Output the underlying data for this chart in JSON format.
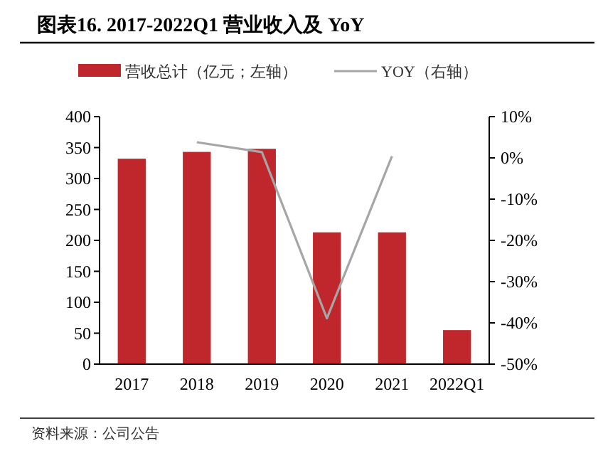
{
  "chart_data": {
    "type": "bar",
    "title": "图表16. 2017-2022Q1 营业收入及 YoY",
    "categories": [
      "2017",
      "2018",
      "2019",
      "2020",
      "2021",
      "2022Q1"
    ],
    "series": [
      {
        "name": "营收总计（亿元；左轴）",
        "color": "#c0272d",
        "values": [
          332,
          343,
          348,
          213,
          213,
          55
        ]
      },
      {
        "name": "YOY（右轴）",
        "type": "line",
        "axis": "y2",
        "color": "#a6a6a6",
        "values": [
          null,
          3.8,
          1.4,
          -38.9,
          0.4,
          null
        ]
      }
    ],
    "ylim": [
      0,
      400
    ],
    "yticks": [
      0,
      50,
      100,
      150,
      200,
      250,
      300,
      350,
      400
    ],
    "y2lim": [
      -50,
      10
    ],
    "y2ticks": [
      {
        "value": -50,
        "label": "-50%"
      },
      {
        "value": -40,
        "label": "-40%"
      },
      {
        "value": -30,
        "label": "-30%"
      },
      {
        "value": -20,
        "label": "-20%"
      },
      {
        "value": -10,
        "label": "-10%"
      },
      {
        "value": 0,
        "label": "0%"
      },
      {
        "value": 10,
        "label": "10%"
      }
    ],
    "legend": "top",
    "grid": false,
    "marker": "none",
    "annotations": [
      "资料来源：公司公告"
    ]
  }
}
